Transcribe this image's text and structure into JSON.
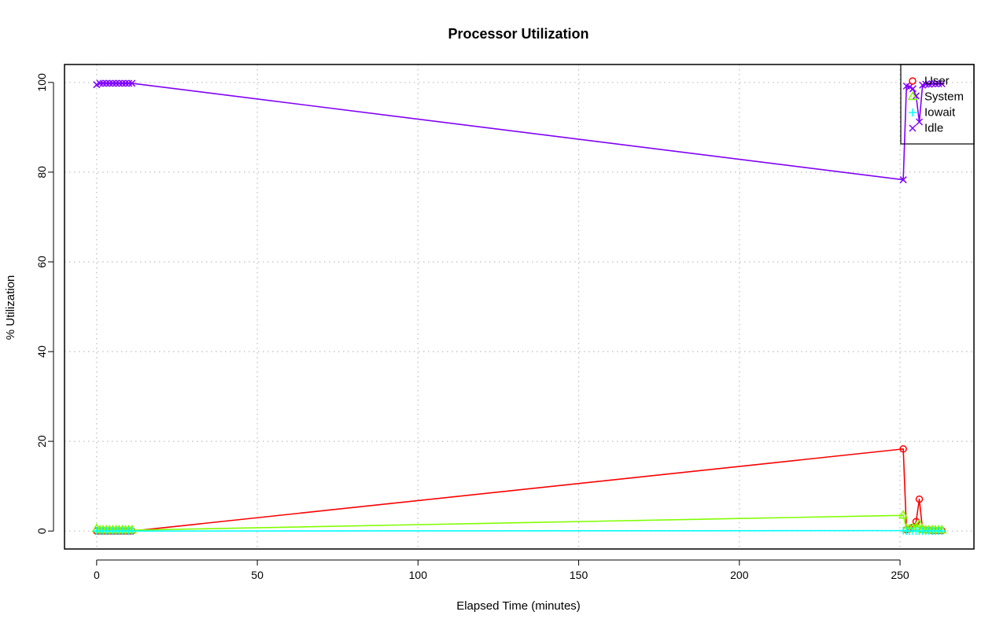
{
  "chart_data": {
    "type": "line",
    "title": "Processor Utilization",
    "xlabel": "Elapsed Time (minutes)",
    "ylabel": "% Utilization",
    "xlim": [
      -10,
      273
    ],
    "ylim": [
      -4,
      104
    ],
    "xticks": [
      0,
      50,
      100,
      150,
      200,
      250
    ],
    "yticks": [
      0,
      20,
      40,
      60,
      80,
      100
    ],
    "grid": true,
    "legend_position": "top-right",
    "x": [
      0,
      1,
      2,
      3,
      4,
      5,
      6,
      7,
      8,
      9,
      10,
      11,
      251,
      252,
      253,
      254,
      255,
      256,
      257,
      258,
      259,
      260,
      261,
      262,
      263
    ],
    "series": [
      {
        "name": "User",
        "color": "#ff0000",
        "marker": "circle",
        "values": [
          0,
          0,
          0,
          0,
          0,
          0,
          0,
          0,
          0,
          0,
          0,
          0,
          18.3,
          0.3,
          0.5,
          0.8,
          2.1,
          7.1,
          0.3,
          0.2,
          0.2,
          0.1,
          0.1,
          0.1,
          0.1
        ]
      },
      {
        "name": "System",
        "color": "#7fff00",
        "marker": "triangle",
        "values": [
          0.5,
          0.2,
          0.2,
          0.2,
          0.2,
          0.2,
          0.2,
          0.2,
          0.2,
          0.2,
          0.2,
          0.2,
          3.5,
          0.5,
          0.5,
          0.6,
          0.9,
          1.5,
          0.3,
          0.2,
          0.2,
          0.2,
          0.2,
          0.2,
          0.2
        ]
      },
      {
        "name": "Iowait",
        "color": "#00ffff",
        "marker": "plus",
        "values": [
          0,
          0,
          0,
          0,
          0,
          0,
          0,
          0,
          0,
          0,
          0,
          0,
          0.1,
          0,
          0,
          0,
          0,
          0,
          0,
          0,
          0,
          0,
          0,
          0,
          0
        ]
      },
      {
        "name": "Idle",
        "color": "#8000ff",
        "marker": "x",
        "values": [
          99.5,
          99.8,
          99.8,
          99.8,
          99.8,
          99.8,
          99.8,
          99.8,
          99.8,
          99.8,
          99.8,
          99.8,
          78.3,
          99.2,
          99.0,
          98.6,
          97.0,
          91.2,
          99.4,
          99.6,
          99.6,
          99.7,
          99.7,
          99.7,
          99.7
        ]
      }
    ]
  }
}
